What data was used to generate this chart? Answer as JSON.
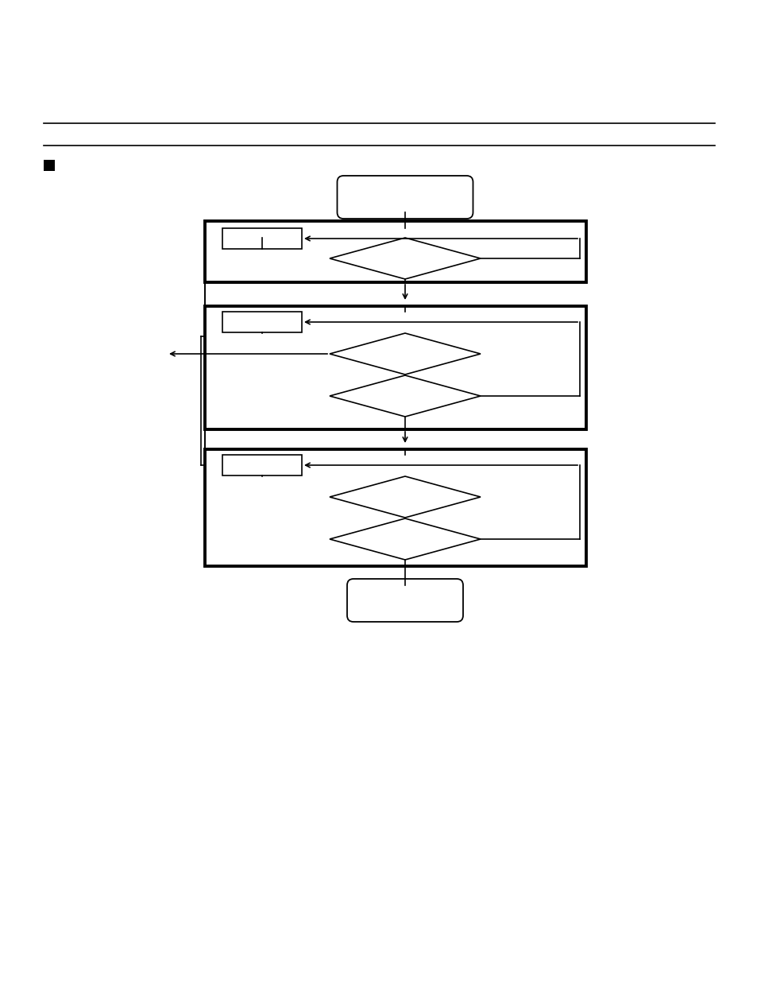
{
  "bg_color": "#ffffff",
  "line_color": "#000000",
  "thin_line": 1.0,
  "thick_line": 2.8,
  "fig_width": 9.54,
  "fig_height": 12.35
}
